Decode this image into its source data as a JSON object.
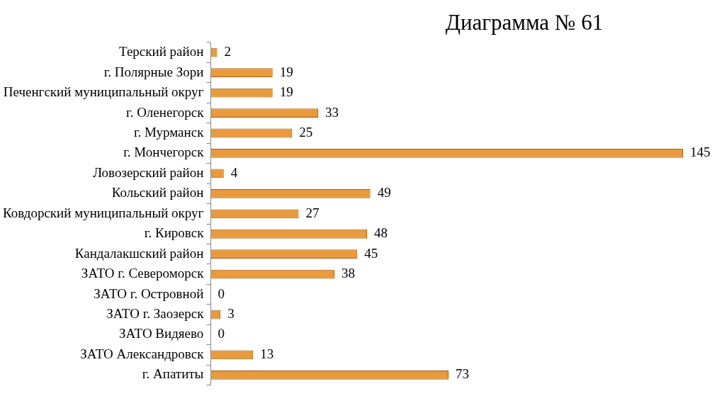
{
  "chart_data": {
    "type": "bar",
    "orientation": "horizontal",
    "title": "Диаграмма № 61",
    "categories": [
      "Терский район",
      "г. Полярные Зори",
      "Печенгский муниципальный округ",
      "г. Оленегорск",
      "г. Мурманск",
      "г. Мончегорск",
      "Ловозерский район",
      "Кольский район",
      "Ковдорский муниципальный округ",
      "г. Кировск",
      "Кандалакшский район",
      "ЗАТО г. Североморск",
      "ЗАТО г. Островной",
      "ЗАТО г. Заозерск",
      "ЗАТО Видяево",
      "ЗАТО Александровск",
      "г. Апатиты"
    ],
    "values": [
      2,
      19,
      19,
      33,
      25,
      145,
      4,
      49,
      27,
      48,
      45,
      38,
      0,
      3,
      0,
      13,
      73
    ],
    "color": "#e89a3c",
    "data_labels": true,
    "grid": false,
    "legend": false
  }
}
